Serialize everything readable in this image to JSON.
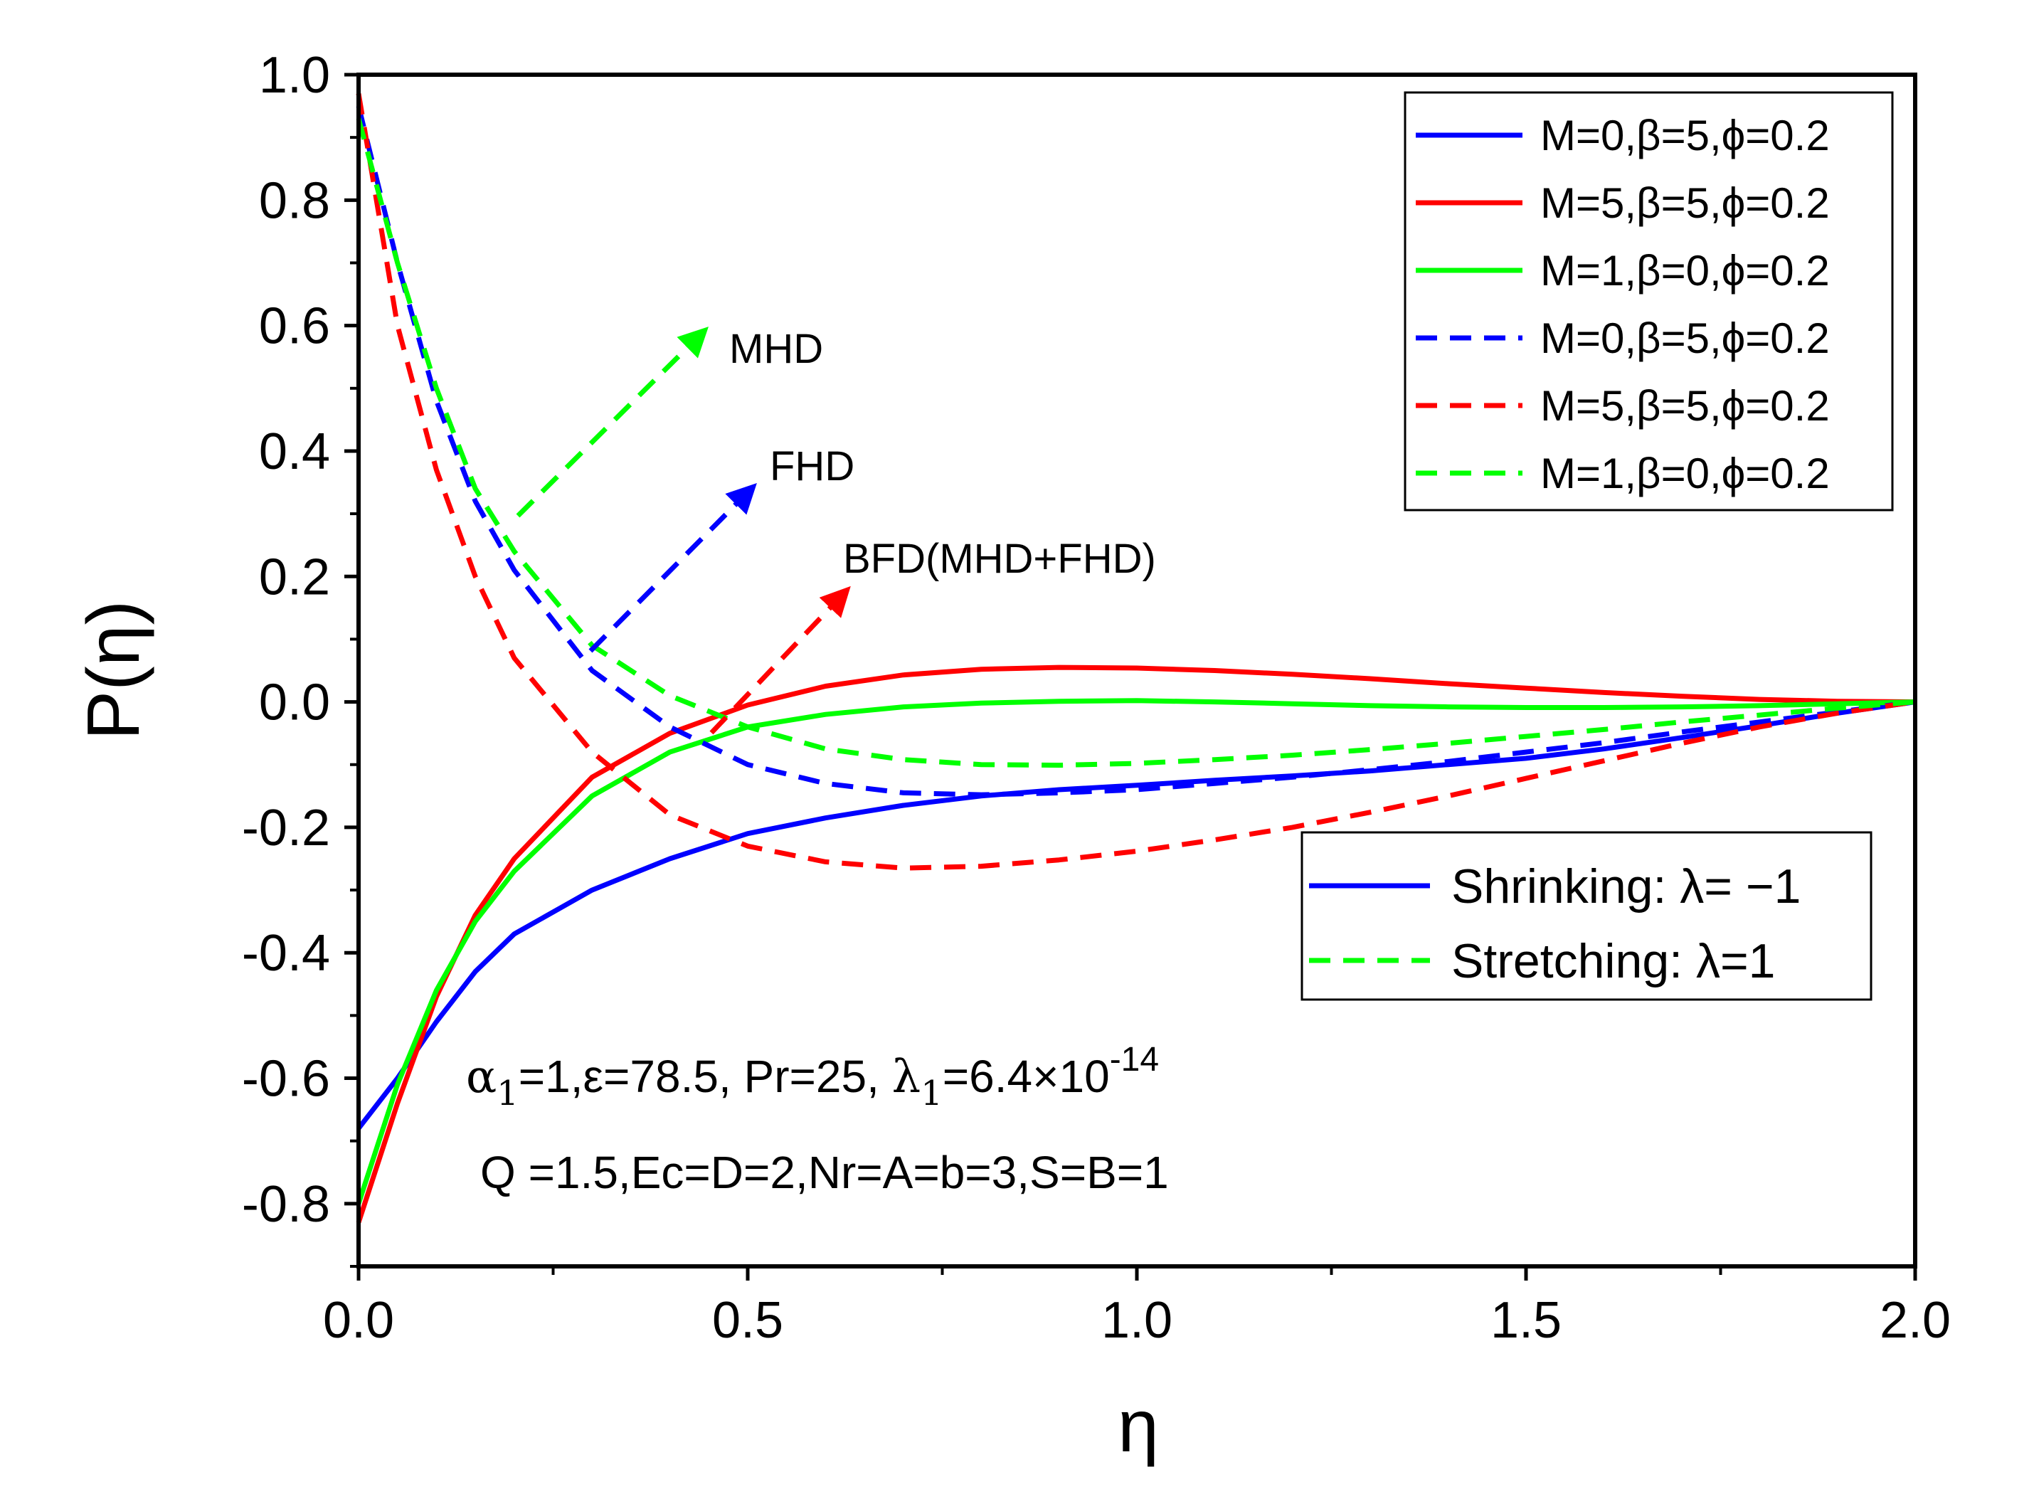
{
  "chart_data": {
    "type": "line",
    "title": "",
    "xlabel": "η",
    "ylabel": "P(η)",
    "xlim": [
      0,
      2
    ],
    "ylim": [
      -0.9,
      1.0
    ],
    "x_ticks": [
      "0.0",
      "0.5",
      "1.0",
      "1.5",
      "2.0"
    ],
    "x_tick_values": [
      0,
      0.5,
      1.0,
      1.5,
      2.0
    ],
    "y_ticks": [
      "1.0",
      "0.8",
      "0.6",
      "0.4",
      "0.2",
      "0.0",
      "-0.2",
      "-0.4",
      "-0.6",
      "-0.8"
    ],
    "y_tick_values": [
      1.0,
      0.8,
      0.6,
      0.4,
      0.2,
      0.0,
      -0.2,
      -0.4,
      -0.6,
      -0.8
    ],
    "series": [
      {
        "name": "M=0,β=5,ϕ=0.2",
        "color": "#0000ff",
        "style": "solid",
        "x": [
          0,
          0.05,
          0.1,
          0.15,
          0.2,
          0.3,
          0.4,
          0.5,
          0.6,
          0.7,
          0.8,
          0.9,
          1.0,
          1.1,
          1.2,
          1.3,
          1.4,
          1.5,
          1.6,
          1.7,
          1.8,
          1.9,
          2.0
        ],
        "y": [
          -0.68,
          -0.6,
          -0.51,
          -0.43,
          -0.37,
          -0.3,
          -0.25,
          -0.21,
          -0.185,
          -0.165,
          -0.15,
          -0.14,
          -0.133,
          -0.125,
          -0.118,
          -0.11,
          -0.1,
          -0.09,
          -0.075,
          -0.057,
          -0.038,
          -0.018,
          0.0
        ]
      },
      {
        "name": "M=5,β=5,ϕ=0.2",
        "color": "#ff0000",
        "style": "solid",
        "x": [
          0,
          0.05,
          0.1,
          0.15,
          0.2,
          0.3,
          0.4,
          0.5,
          0.6,
          0.7,
          0.8,
          0.9,
          1.0,
          1.1,
          1.2,
          1.3,
          1.4,
          1.5,
          1.6,
          1.7,
          1.8,
          1.9,
          2.0
        ],
        "y": [
          -0.83,
          -0.64,
          -0.47,
          -0.34,
          -0.25,
          -0.12,
          -0.05,
          -0.005,
          0.025,
          0.043,
          0.052,
          0.055,
          0.054,
          0.05,
          0.044,
          0.037,
          0.029,
          0.022,
          0.015,
          0.009,
          0.004,
          0.001,
          0.0
        ]
      },
      {
        "name": "M=1,β=0,ϕ=0.2",
        "color": "#00ff00",
        "style": "solid",
        "x": [
          0,
          0.05,
          0.1,
          0.15,
          0.2,
          0.3,
          0.4,
          0.5,
          0.6,
          0.7,
          0.8,
          0.9,
          1.0,
          1.1,
          1.2,
          1.3,
          1.4,
          1.5,
          1.6,
          1.7,
          1.8,
          1.9,
          2.0
        ],
        "y": [
          -0.8,
          -0.61,
          -0.46,
          -0.35,
          -0.27,
          -0.15,
          -0.08,
          -0.04,
          -0.02,
          -0.008,
          -0.002,
          0.001,
          0.002,
          0.0,
          -0.003,
          -0.006,
          -0.008,
          -0.009,
          -0.009,
          -0.008,
          -0.006,
          -0.003,
          0.0
        ]
      },
      {
        "name": "M=0,β=5,ϕ=0.2",
        "color": "#0000ff",
        "style": "dashed",
        "x": [
          0,
          0.05,
          0.1,
          0.15,
          0.2,
          0.3,
          0.4,
          0.5,
          0.6,
          0.7,
          0.8,
          0.9,
          1.0,
          1.1,
          1.2,
          1.3,
          1.4,
          1.5,
          1.6,
          1.7,
          1.8,
          1.9,
          2.0
        ],
        "y": [
          0.95,
          0.7,
          0.48,
          0.32,
          0.21,
          0.05,
          -0.04,
          -0.1,
          -0.13,
          -0.145,
          -0.148,
          -0.145,
          -0.14,
          -0.13,
          -0.12,
          -0.108,
          -0.095,
          -0.08,
          -0.065,
          -0.048,
          -0.032,
          -0.016,
          0.0
        ]
      },
      {
        "name": "M=5,β=5,ϕ=0.2",
        "color": "#ff0000",
        "style": "dashed",
        "x": [
          0,
          0.05,
          0.1,
          0.15,
          0.2,
          0.3,
          0.4,
          0.5,
          0.6,
          0.7,
          0.8,
          0.9,
          1.0,
          1.1,
          1.2,
          1.3,
          1.4,
          1.5,
          1.6,
          1.7,
          1.8,
          1.9,
          2.0
        ],
        "y": [
          0.97,
          0.6,
          0.37,
          0.2,
          0.07,
          -0.08,
          -0.18,
          -0.23,
          -0.255,
          -0.265,
          -0.262,
          -0.252,
          -0.238,
          -0.22,
          -0.2,
          -0.176,
          -0.15,
          -0.122,
          -0.094,
          -0.066,
          -0.04,
          -0.018,
          0.0
        ]
      },
      {
        "name": "M=1,β=0,ϕ=0.2",
        "color": "#00ff00",
        "style": "dashed",
        "x": [
          0,
          0.05,
          0.1,
          0.15,
          0.2,
          0.3,
          0.4,
          0.5,
          0.6,
          0.7,
          0.8,
          0.9,
          1.0,
          1.1,
          1.2,
          1.3,
          1.4,
          1.5,
          1.6,
          1.7,
          1.8,
          1.9,
          2.0
        ],
        "y": [
          0.93,
          0.7,
          0.5,
          0.34,
          0.24,
          0.09,
          0.01,
          -0.04,
          -0.075,
          -0.092,
          -0.1,
          -0.101,
          -0.098,
          -0.092,
          -0.085,
          -0.076,
          -0.066,
          -0.055,
          -0.044,
          -0.032,
          -0.021,
          -0.01,
          0.0
        ]
      }
    ],
    "legend_position": "top-right",
    "legend2_position": "center-right",
    "legend2": [
      {
        "label": "Shrinking: λ= −1",
        "color": "#0000ff",
        "style": "solid"
      },
      {
        "label": "Stretching: λ=1",
        "color": "#00ff00",
        "style": "dashed"
      }
    ],
    "annotations": {
      "mhd": {
        "text": "MHD",
        "color": "#00ff00"
      },
      "fhd": {
        "text": "FHD",
        "color": "#0000ff"
      },
      "bfd": {
        "text": "BFD(MHD+FHD)",
        "color": "#ff0000"
      },
      "param1": {
        "alpha": "α",
        "alpha_sub": "1",
        "part1": "=1,ε=78.5, Pr=25, ",
        "lambda": "λ",
        "lambda_sub": "1",
        "part2": "=6.4×10",
        "exponent": "-14"
      },
      "param2": "Q =1.5,Ec=D=2,Nr=A=b=3,S=B=1"
    }
  }
}
